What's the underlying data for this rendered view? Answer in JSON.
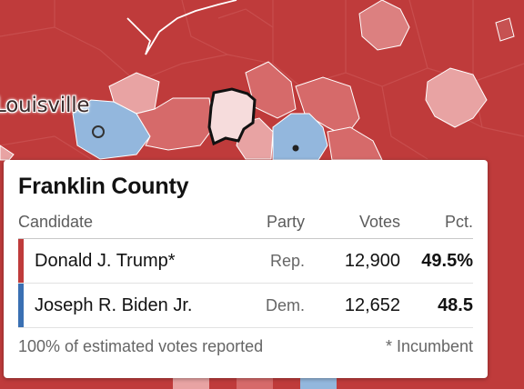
{
  "map": {
    "city_label": "Louisville",
    "colors": {
      "strong_rep": "#bf3b3b",
      "mid_rep": "#d66a6a",
      "light_rep": "#e8a3a3",
      "very_light_rep": "#f6dcdc",
      "lean_dem": "#93b7dd",
      "border": "#ffffff"
    }
  },
  "tooltip": {
    "county_name": "Franklin County",
    "headers": {
      "candidate": "Candidate",
      "party": "Party",
      "votes": "Votes",
      "pct": "Pct."
    },
    "rows": [
      {
        "candidate": "Donald J. Trump*",
        "party": "Rep.",
        "votes": "12,900",
        "pct": "49.5%",
        "color": "#bf3b3b"
      },
      {
        "candidate": "Joseph R. Biden Jr.",
        "party": "Dem.",
        "votes": "12,652",
        "pct": "48.5",
        "color": "#3a70b3"
      }
    ],
    "reported": "100% of estimated votes reported",
    "incumbent_note": "* Incumbent"
  }
}
